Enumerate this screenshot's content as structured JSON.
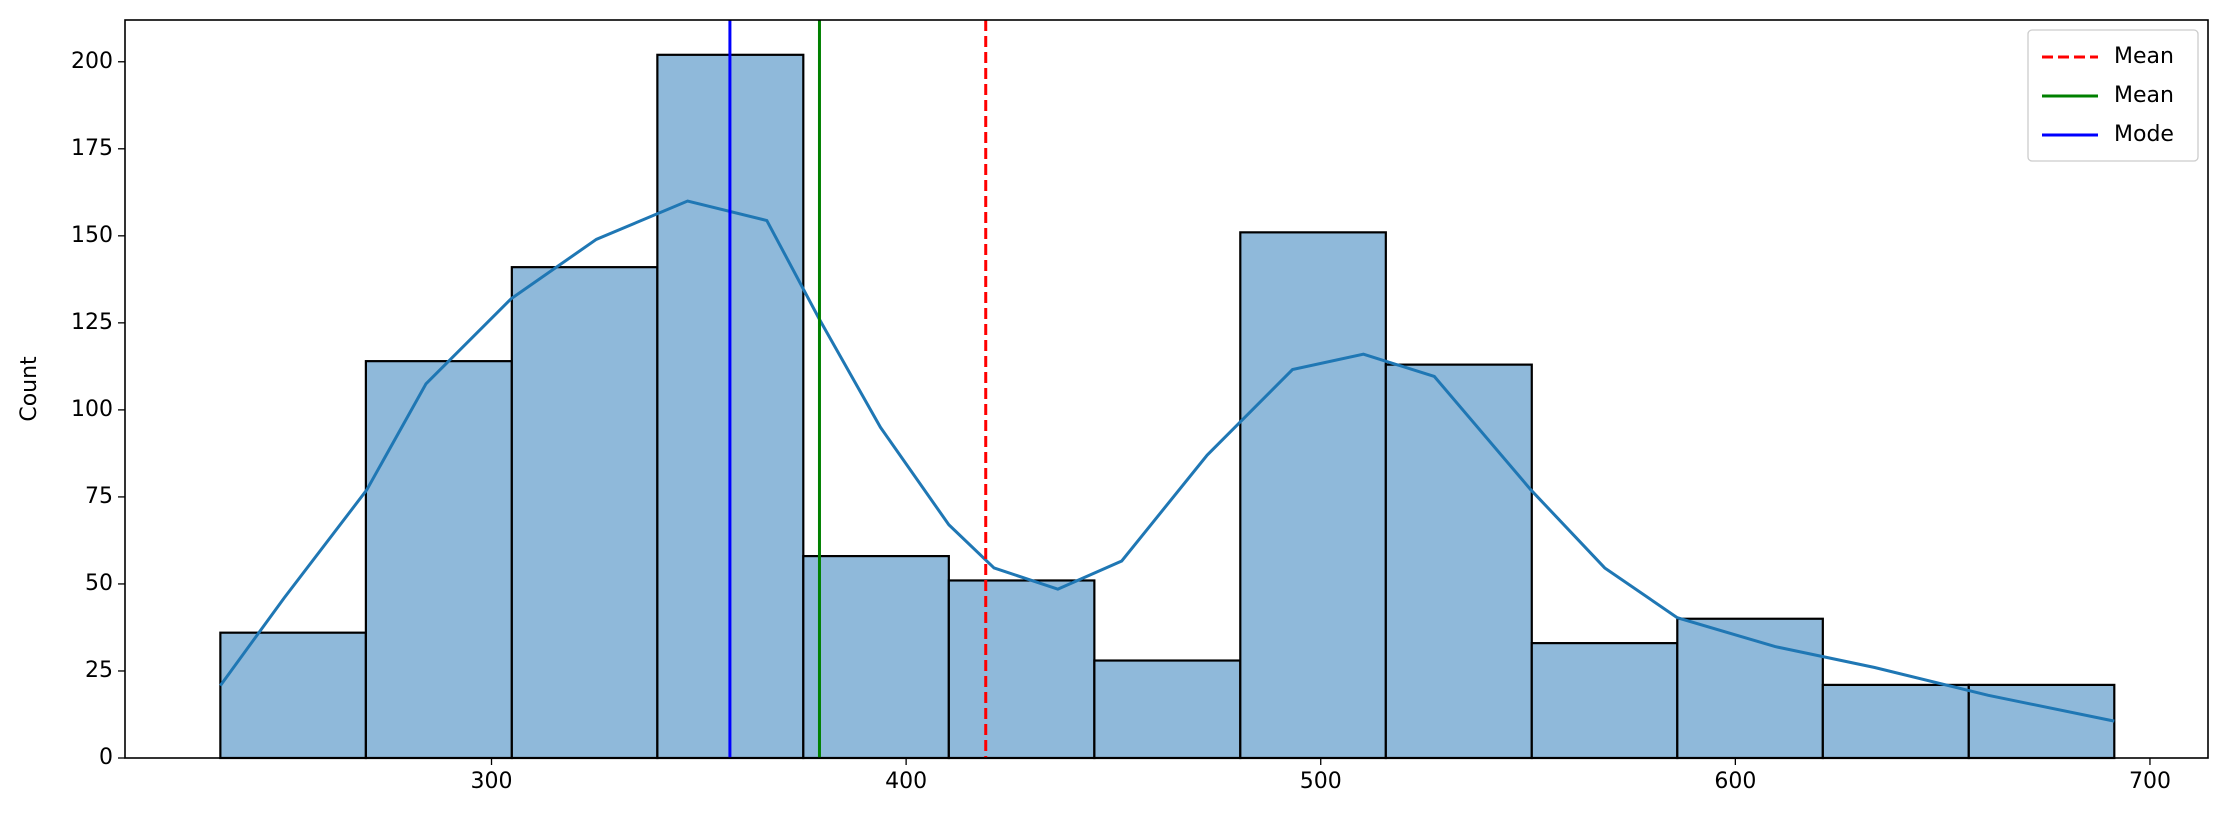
{
  "chart_data": {
    "type": "histogram",
    "y_label": "Count",
    "bins": [
      234.6,
      269.7,
      304.9,
      340.0,
      375.2,
      410.3,
      445.4,
      480.6,
      515.7,
      550.9,
      586.0,
      621.1,
      656.3,
      691.4
    ],
    "counts": [
      36,
      114,
      141,
      202,
      58,
      51,
      28,
      151,
      113,
      33,
      40,
      21,
      21
    ],
    "color": "#8fb9da",
    "edge_color": "#000000",
    "kde": {
      "color": "#1f77b4",
      "x": [
        234.6,
        250,
        269.9,
        284.2,
        304.8,
        325.3,
        347.3,
        366.4,
        379.1,
        393.8,
        410.3,
        421.2,
        436.6,
        452,
        472.6,
        493.2,
        510.3,
        527.4,
        550.7,
        568.5,
        586,
        609.6,
        633.6,
        661,
        691.4
      ],
      "values": [
        20.8,
        46,
        77,
        107.5,
        132,
        149,
        160,
        154.4,
        126,
        95,
        67,
        54.6,
        48.5,
        56.6,
        87,
        111.6,
        116,
        109.6,
        77,
        54.6,
        40.3,
        32,
        26,
        18,
        10.6
      ]
    },
    "vlines": [
      {
        "name": "Mean",
        "value": 419.2,
        "color": "#ff0000",
        "style": "dashed"
      },
      {
        "name": "Mean",
        "value": 379.1,
        "color": "#008000",
        "style": "solid"
      },
      {
        "name": "Mode",
        "value": 357.5,
        "color": "#0000ff",
        "style": "solid"
      }
    ],
    "xlim": [
      211.6,
      714.0
    ],
    "ylim": [
      0,
      212
    ],
    "xticks": [
      300,
      400,
      500,
      600,
      700
    ],
    "yticks": [
      0,
      25,
      50,
      75,
      100,
      125,
      150,
      175,
      200
    ],
    "legend": "upper right"
  }
}
